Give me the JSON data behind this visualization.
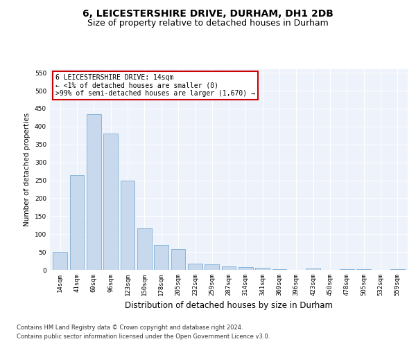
{
  "title": "6, LEICESTERSHIRE DRIVE, DURHAM, DH1 2DB",
  "subtitle": "Size of property relative to detached houses in Durham",
  "xlabel": "Distribution of detached houses by size in Durham",
  "ylabel": "Number of detached properties",
  "categories": [
    "14sqm",
    "41sqm",
    "69sqm",
    "96sqm",
    "123sqm",
    "150sqm",
    "178sqm",
    "205sqm",
    "232sqm",
    "259sqm",
    "287sqm",
    "314sqm",
    "341sqm",
    "369sqm",
    "396sqm",
    "423sqm",
    "450sqm",
    "478sqm",
    "505sqm",
    "532sqm",
    "559sqm"
  ],
  "values": [
    50,
    265,
    435,
    380,
    250,
    115,
    70,
    58,
    17,
    15,
    9,
    7,
    5,
    2,
    0,
    3,
    0,
    1,
    1,
    0,
    2
  ],
  "bar_color": "#c9d9ed",
  "bar_edge_color": "#7aaed6",
  "annotation_title": "6 LEICESTERSHIRE DRIVE: 14sqm",
  "annotation_line1": "← <1% of detached houses are smaller (0)",
  "annotation_line2": ">99% of semi-detached houses are larger (1,670) →",
  "annotation_box_color": "#ffffff",
  "annotation_box_edge": "#cc0000",
  "ylim": [
    0,
    560
  ],
  "yticks": [
    0,
    50,
    100,
    150,
    200,
    250,
    300,
    350,
    400,
    450,
    500,
    550
  ],
  "bg_color": "#eef2fa",
  "footer1": "Contains HM Land Registry data © Crown copyright and database right 2024.",
  "footer2": "Contains public sector information licensed under the Open Government Licence v3.0.",
  "title_fontsize": 10,
  "subtitle_fontsize": 9,
  "xlabel_fontsize": 8.5,
  "ylabel_fontsize": 7.5,
  "tick_fontsize": 6.5,
  "footer_fontsize": 6,
  "annotation_fontsize": 7
}
